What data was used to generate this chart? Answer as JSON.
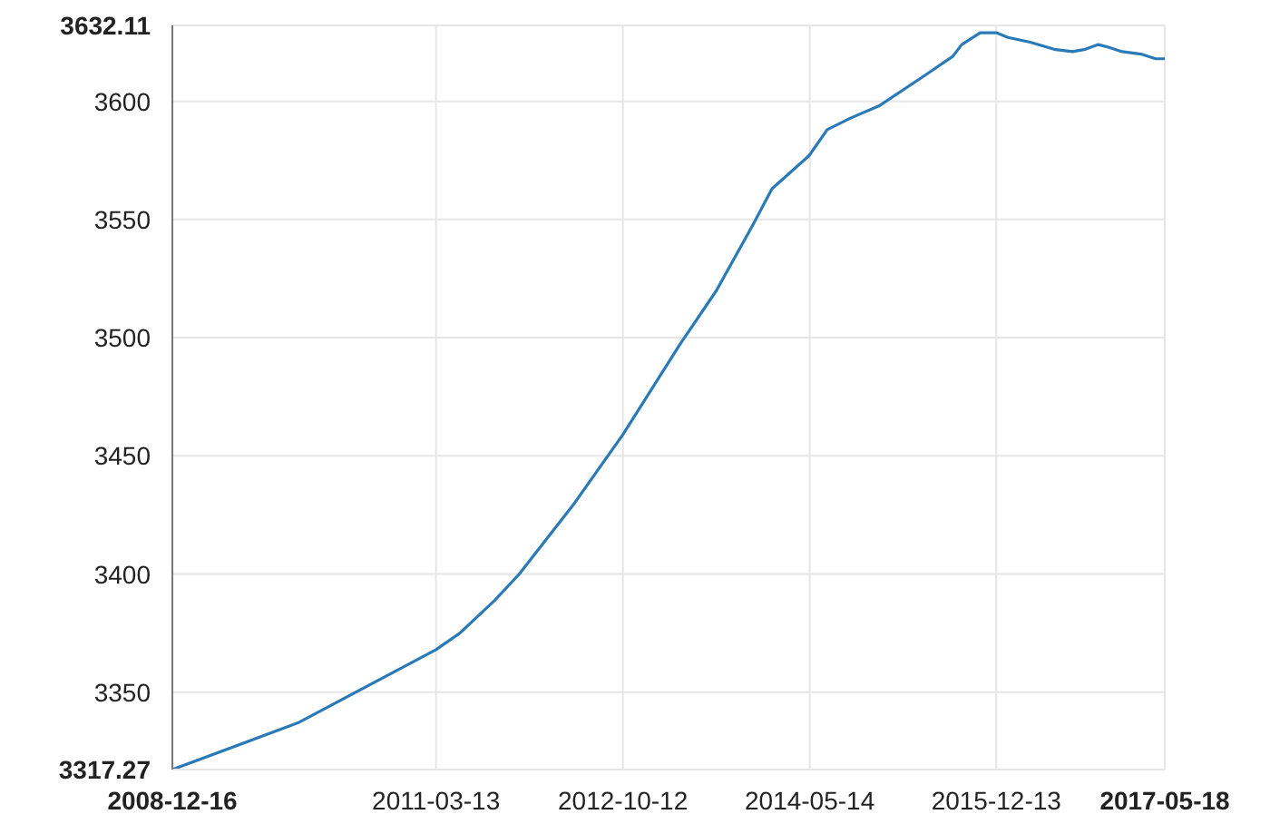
{
  "chart_data": {
    "type": "line",
    "x": [
      "2008-12-16",
      "2010-01-09",
      "2011-03-13",
      "2011-05-26",
      "2011-09-12",
      "2011-11-26",
      "2012-03-02",
      "2012-05-15",
      "2012-10-12",
      "2013-04-06",
      "2013-07-29",
      "2013-11-20",
      "2014-01-17",
      "2014-05-12",
      "2014-07-07",
      "2014-09-19",
      "2014-12-14",
      "2015-05-06",
      "2015-07-31",
      "2015-08-28",
      "2015-10-24",
      "2015-12-13",
      "2016-01-18",
      "2016-03-27",
      "2016-06-09",
      "2016-08-05",
      "2016-09-14",
      "2016-10-24",
      "2016-11-22",
      "2017-01-06",
      "2017-03-05",
      "2017-04-20",
      "2017-05-18"
    ],
    "series": [
      {
        "color": "#2a7ab8",
        "values": [
          3317.27,
          3337,
          3368,
          3375,
          3389,
          3400,
          3417,
          3430,
          3459,
          3497,
          3520,
          3548,
          3563,
          3577,
          3588,
          3593,
          3598,
          3611,
          3619,
          3624,
          3629,
          3629,
          3627,
          3625,
          3622,
          3621,
          3622,
          3624,
          3623,
          3621,
          3620,
          3618,
          3618
        ]
      }
    ],
    "xlim": [
      "2008-12-16",
      "2017-05-18"
    ],
    "xticks": [
      "2008-12-16",
      "2011-03-13",
      "2012-10-12",
      "2014-05-14",
      "2015-12-13",
      "2017-05-18"
    ],
    "ylim": [
      3317.27,
      3632.11
    ],
    "yticks": [
      3317.27,
      3350,
      3400,
      3450,
      3500,
      3550,
      3600,
      3632.11
    ],
    "grid": true,
    "marker": "none",
    "line_style": "solid"
  }
}
